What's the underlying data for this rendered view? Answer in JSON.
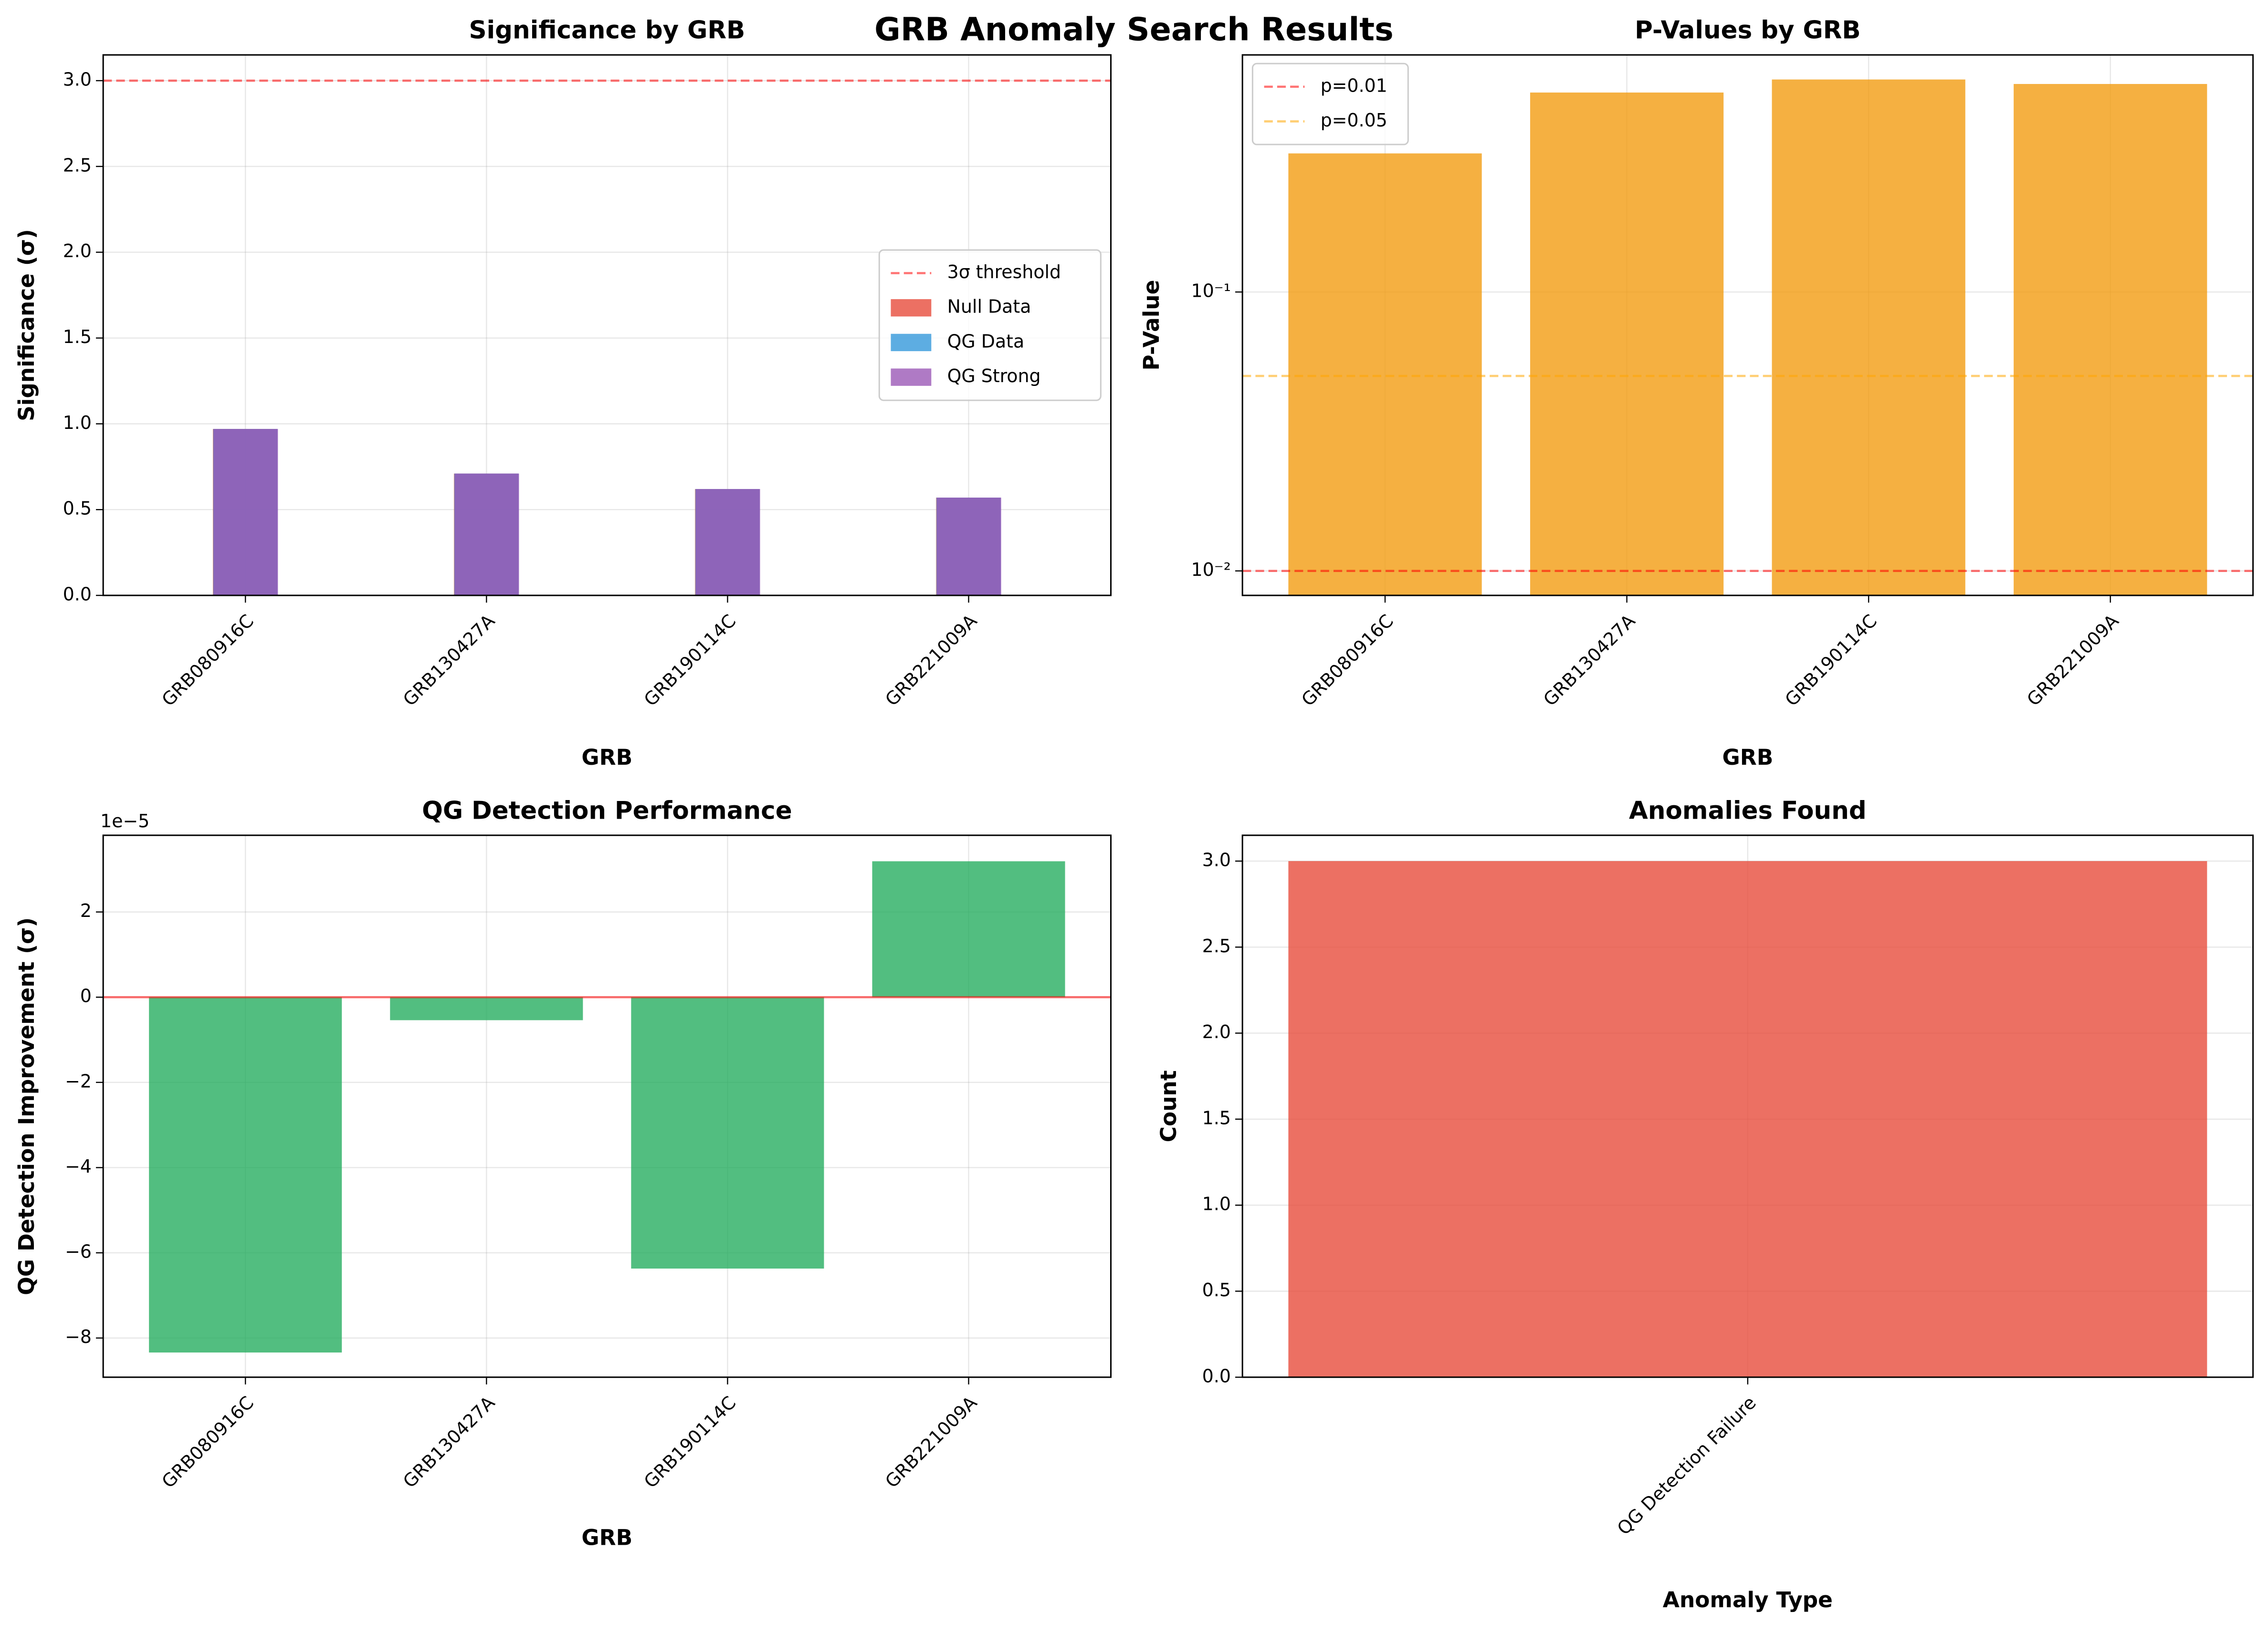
{
  "title": "GRB Anomaly Search Results",
  "chart_data": [
    {
      "type": "bar",
      "title": "Significance by GRB",
      "xlabel": "GRB",
      "ylabel": "Significance (σ)",
      "categories": [
        "GRB080916C",
        "GRB130427A",
        "GRB190114C",
        "GRB221009A"
      ],
      "series": [
        {
          "name": "Null Data",
          "color": "#e74c3c",
          "values": [
            0.97,
            0.71,
            0.62,
            0.57
          ]
        },
        {
          "name": "QG Data",
          "color": "#3498db",
          "values": [
            0.97,
            0.71,
            0.62,
            0.57
          ]
        },
        {
          "name": "QG Strong",
          "color": "#9b59b6",
          "values": [
            0.97,
            0.71,
            0.62,
            0.57
          ]
        }
      ],
      "hlines": [
        {
          "value": 3,
          "label": "3σ threshold",
          "color": "#ff0000"
        }
      ],
      "ylim": [
        0,
        3.15
      ],
      "yticks": [
        {
          "value": 0,
          "label": "0.0"
        },
        {
          "value": 0.5,
          "label": "0.5"
        },
        {
          "value": 1,
          "label": "1.0"
        },
        {
          "value": 1.5,
          "label": "1.5"
        },
        {
          "value": 2,
          "label": "2.0"
        },
        {
          "value": 2.5,
          "label": "2.5"
        },
        {
          "value": 3,
          "label": "3.0"
        }
      ],
      "grid": true,
      "legend": "center right"
    },
    {
      "type": "bar",
      "title": "P-Values by GRB",
      "xlabel": "GRB",
      "ylabel": "P-Value",
      "categories": [
        "GRB080916C",
        "GRB130427A",
        "GRB190114C",
        "GRB221009A"
      ],
      "values": [
        0.314,
        0.519,
        0.578,
        0.557
      ],
      "color": "#f39c12",
      "hlines": [
        {
          "value": 0.01,
          "label": "p=0.01",
          "color": "#ff0000"
        },
        {
          "value": 0.05,
          "label": "p=0.05",
          "color": "#ffa500"
        }
      ],
      "log_scale": true,
      "ylim": [
        0.00817,
        0.708
      ],
      "yticks": [
        {
          "value": 0.01,
          "label": "10⁻²"
        },
        {
          "value": 0.1,
          "label": "10⁻¹"
        }
      ],
      "grid": true,
      "legend": "upper left"
    },
    {
      "type": "bar",
      "title": "QG Detection Performance",
      "xlabel": "GRB",
      "ylabel": "QG Detection Improvement (σ)",
      "y_offset_label": "1e−5",
      "categories": [
        "GRB080916C",
        "GRB130427A",
        "GRB190114C",
        "GRB221009A"
      ],
      "values": [
        -8.34,
        -0.54,
        -6.37,
        3.19
      ],
      "color": "#27ae60",
      "hlines": [
        {
          "value": 0,
          "color": "#ff0000"
        }
      ],
      "ylim": [
        -8.92,
        3.8
      ],
      "yticks": [
        {
          "value": -8,
          "label": "−8"
        },
        {
          "value": -6,
          "label": "−6"
        },
        {
          "value": -4,
          "label": "−4"
        },
        {
          "value": -2,
          "label": "−2"
        },
        0,
        2
      ],
      "grid": true
    },
    {
      "type": "bar",
      "title": "Anomalies Found",
      "xlabel": "Anomaly Type",
      "ylabel": "Count",
      "categories": [
        "QG Detection Failure"
      ],
      "values": [
        3
      ],
      "color": "#e74c3c",
      "ylim": [
        0,
        3.15
      ],
      "yticks": [
        {
          "value": 0,
          "label": "0.0"
        },
        {
          "value": 0.5,
          "label": "0.5"
        },
        {
          "value": 1,
          "label": "1.0"
        },
        {
          "value": 1.5,
          "label": "1.5"
        },
        {
          "value": 2,
          "label": "2.0"
        },
        {
          "value": 2.5,
          "label": "2.5"
        },
        {
          "value": 3,
          "label": "3.0"
        }
      ],
      "grid": true
    }
  ]
}
